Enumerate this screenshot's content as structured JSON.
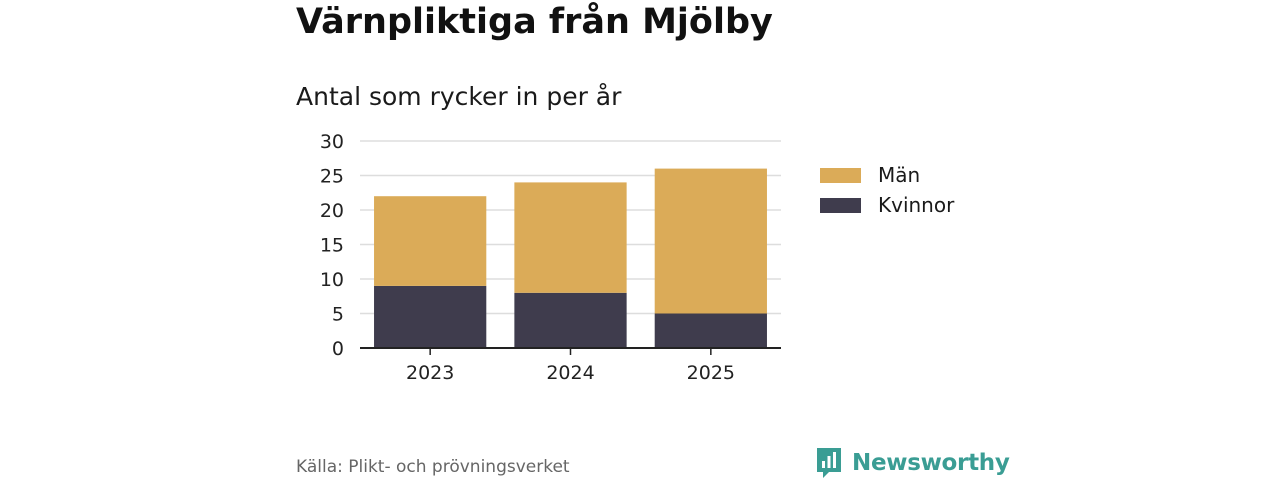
{
  "header": {
    "title": "Värnpliktiga från Mjölby",
    "subtitle": "Antal som rycker in per år"
  },
  "chart_data": {
    "type": "bar",
    "stacked": true,
    "title": "Värnpliktiga från Mjölby",
    "subtitle": "Antal som rycker in per år",
    "categories": [
      "2023",
      "2024",
      "2025"
    ],
    "series": [
      {
        "name": "Kvinnor",
        "values": [
          9,
          8,
          5
        ],
        "color": "#3f3c4d"
      },
      {
        "name": "Män",
        "values": [
          13,
          16,
          21
        ],
        "color": "#dbab58"
      }
    ],
    "yticks": [
      "0",
      "5",
      "10",
      "15",
      "20",
      "25",
      "30"
    ],
    "ylim": [
      0,
      30
    ],
    "grid": true,
    "xlabel": "",
    "ylabel": "",
    "legend": "right"
  },
  "legend": {
    "items": [
      {
        "label": "Män",
        "color": "#dbab58"
      },
      {
        "label": "Kvinnor",
        "color": "#3f3c4d"
      }
    ]
  },
  "footer": {
    "source": "Källa: Plikt- och prövningsverket",
    "brand": "Newsworthy",
    "brand_color": "#3a9d94",
    "brand_icon": "newsworthy-logo-icon"
  }
}
